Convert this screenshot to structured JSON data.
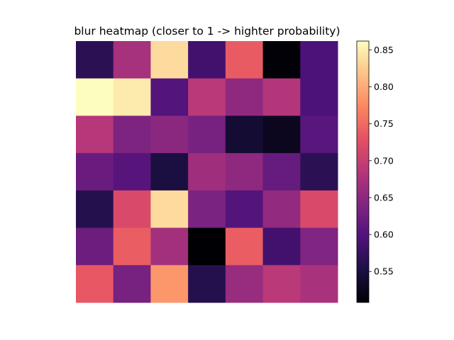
{
  "chart_data": {
    "type": "heatmap",
    "title": "blur heatmap (closer to 1 -> highter probability)",
    "colormap": "magma",
    "vmin": 0.508,
    "vmax": 0.862,
    "show_axis_ticks": false,
    "colorbar": {
      "position": "right",
      "ticks": [
        0.55,
        0.6,
        0.65,
        0.7,
        0.75,
        0.8,
        0.85
      ],
      "tick_labels": [
        "0.55",
        "0.60",
        "0.65",
        "0.70",
        "0.75",
        "0.80",
        "0.85"
      ]
    },
    "values": [
      [
        0.565,
        0.672,
        0.836,
        0.585,
        0.738,
        0.511,
        0.595
      ],
      [
        0.862,
        0.848,
        0.6,
        0.69,
        0.652,
        0.684,
        0.595
      ],
      [
        0.686,
        0.637,
        0.648,
        0.632,
        0.54,
        0.527,
        0.605
      ],
      [
        0.62,
        0.604,
        0.55,
        0.666,
        0.652,
        0.617,
        0.565
      ],
      [
        0.56,
        0.718,
        0.836,
        0.635,
        0.6,
        0.655,
        0.718
      ],
      [
        0.622,
        0.74,
        0.67,
        0.508,
        0.74,
        0.585,
        0.64
      ],
      [
        0.735,
        0.632,
        0.785,
        0.56,
        0.66,
        0.69,
        0.675
      ]
    ]
  }
}
